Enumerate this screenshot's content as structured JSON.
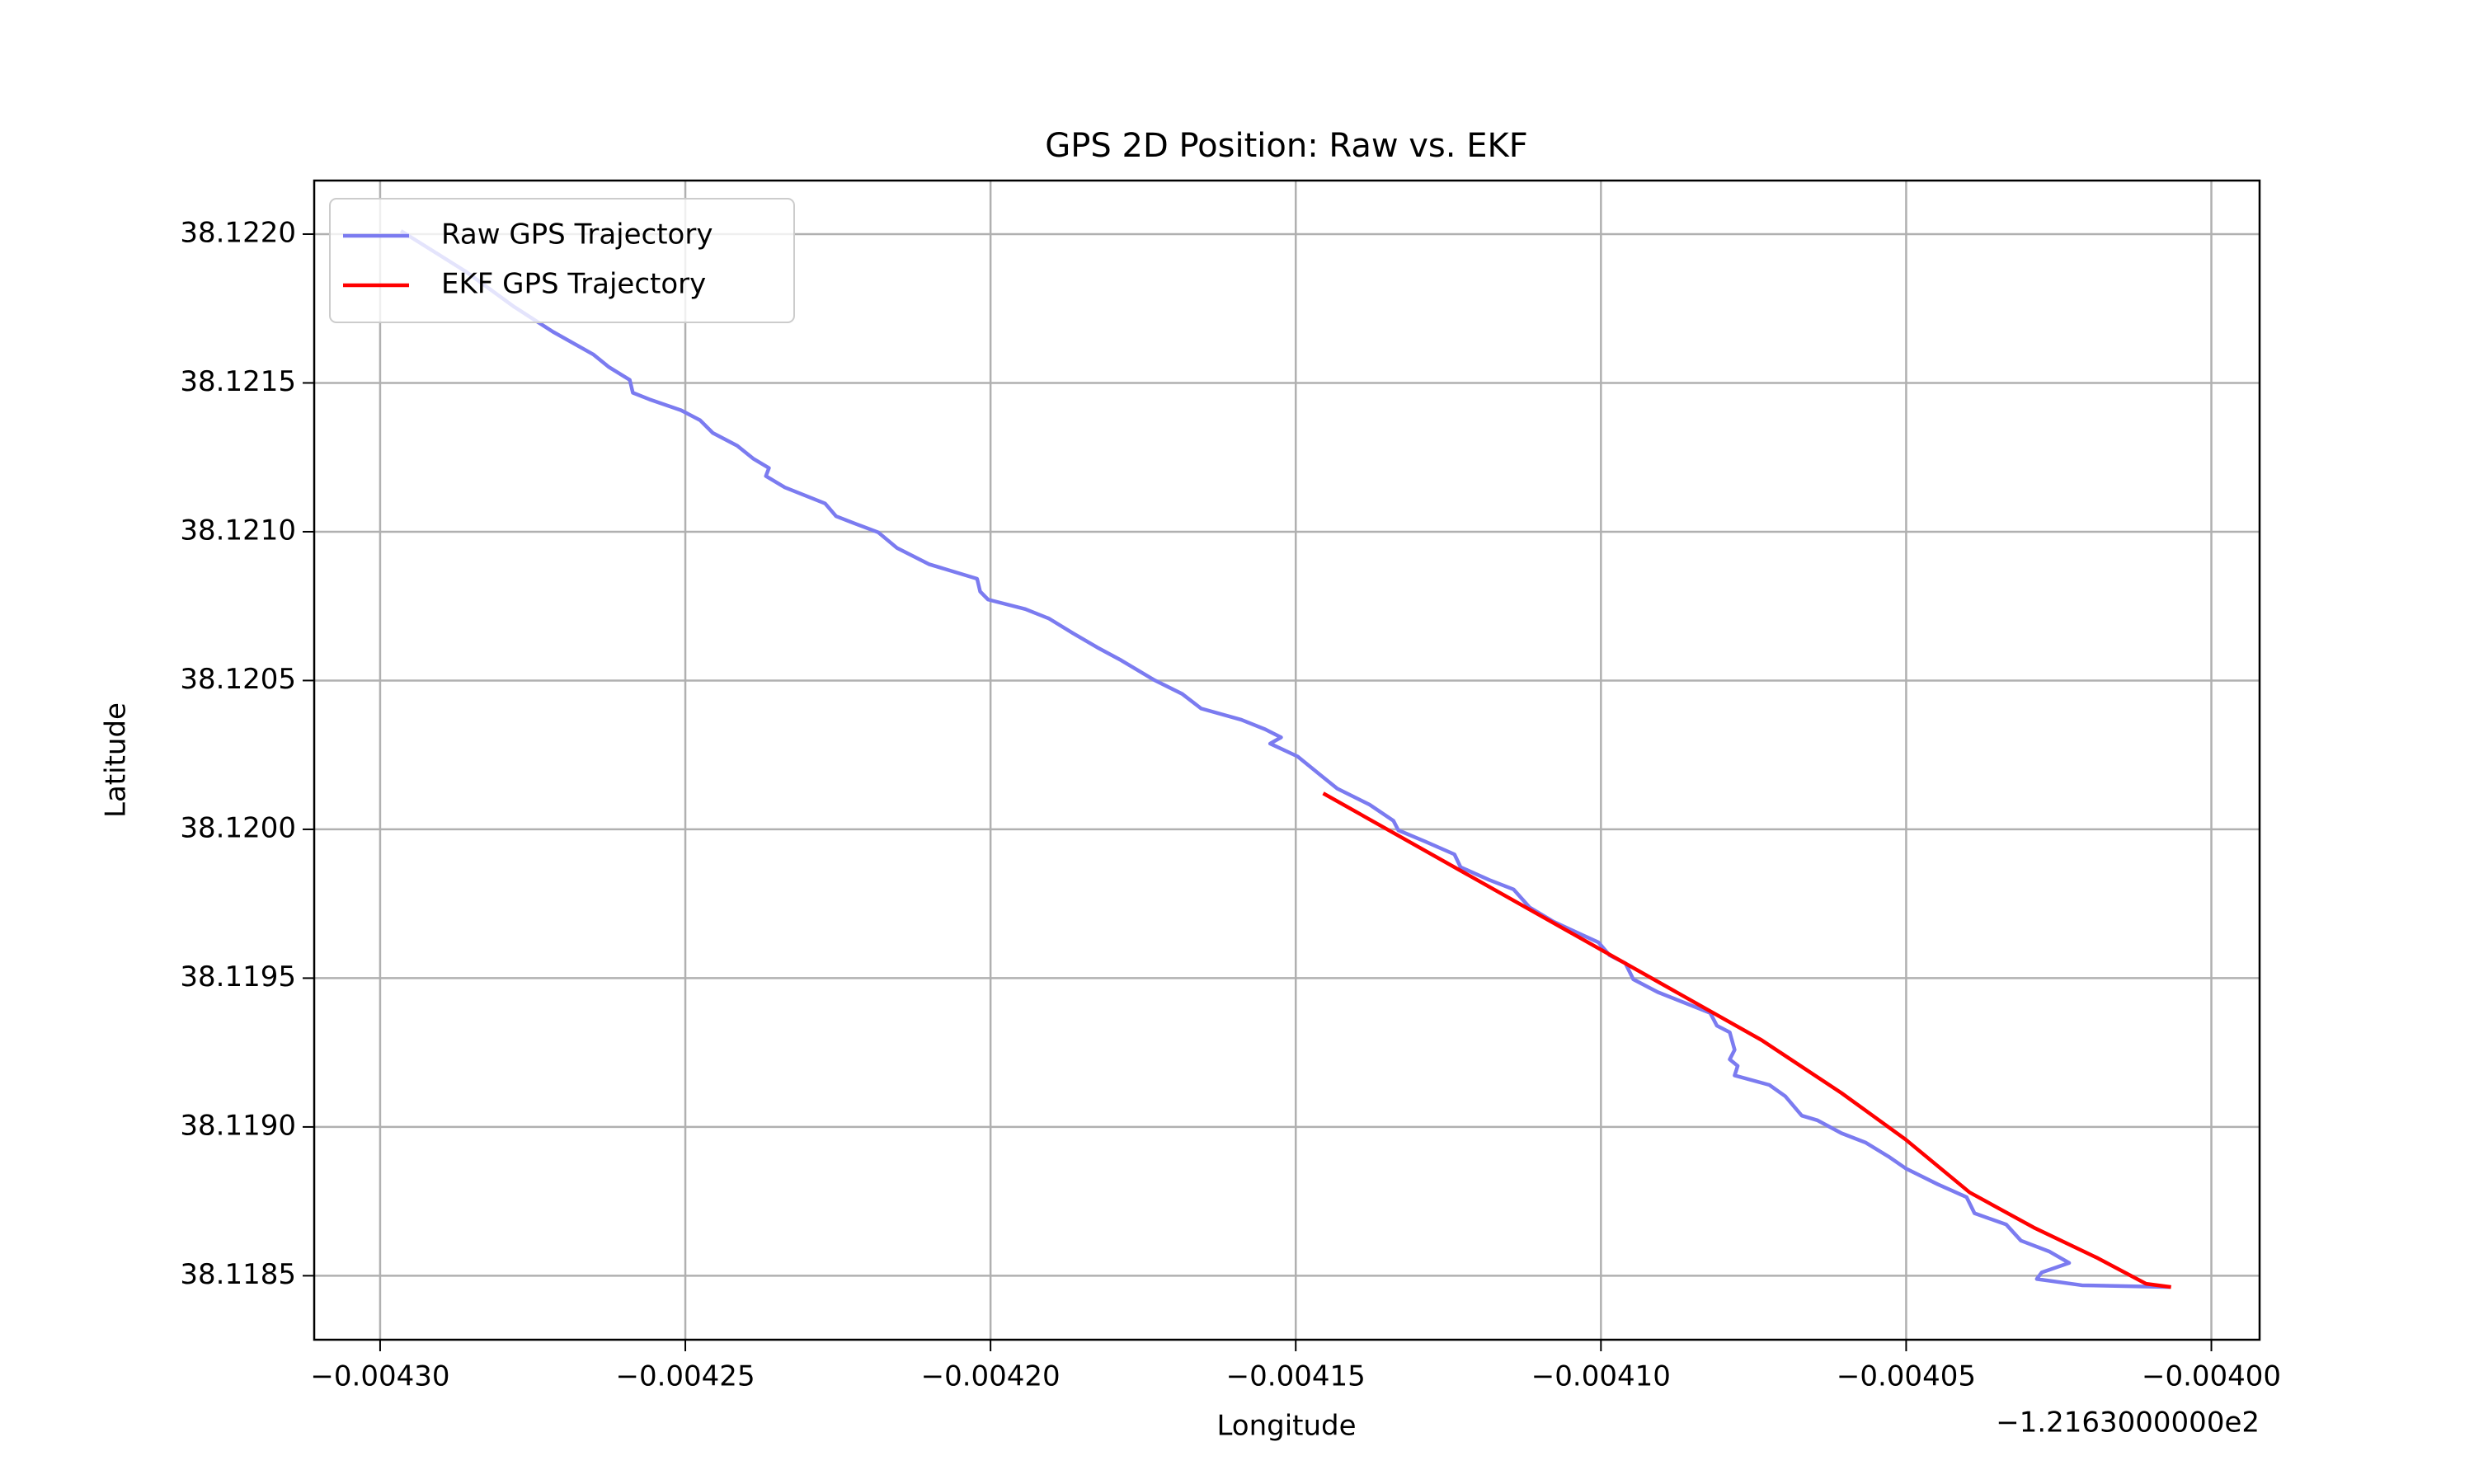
{
  "chart_data": {
    "type": "line",
    "title": "GPS 2D Position: Raw vs. EKF",
    "x_label": "Longitude",
    "y_label": "Latitude",
    "x_offset_label": "−1.2163000000e2",
    "xlim": [
      -0.0043108,
      -0.0039921
    ],
    "ylim": [
      38.118285,
      38.12218
    ],
    "xticks": [
      {
        "value": -0.0043,
        "label": "−0.00430"
      },
      {
        "value": -0.00425,
        "label": "−0.00425"
      },
      {
        "value": -0.0042,
        "label": "−0.00420"
      },
      {
        "value": -0.00415,
        "label": "−0.00415"
      },
      {
        "value": -0.0041,
        "label": "−0.00410"
      },
      {
        "value": -0.00405,
        "label": "−0.00405"
      },
      {
        "value": -0.004,
        "label": "−0.00400"
      }
    ],
    "yticks": [
      38.1185,
      {
        "value": 38.119,
        "label": "38.1190"
      },
      38.1195,
      {
        "value": 38.12,
        "label": "38.1200"
      },
      38.1205,
      {
        "value": 38.121,
        "label": "38.1210"
      },
      38.1215,
      {
        "value": 38.122,
        "label": "38.1220"
      }
    ],
    "grid": true,
    "legend": "upper left",
    "series": [
      {
        "name": "Raw GPS Trajectory",
        "color": "#7b7bf0",
        "x": [
          -0.0042966,
          -0.0042861,
          -0.0042782,
          -0.0042717,
          -0.0042651,
          -0.0042625,
          -0.0042591,
          -0.0042586,
          -0.0042559,
          -0.0042507,
          -0.0042476,
          -0.0042455,
          -0.0042415,
          -0.0042389,
          -0.0042363,
          -0.0042368,
          -0.0042337,
          -0.0042271,
          -0.0042253,
          -0.0042219,
          -0.0042184,
          -0.0042153,
          -0.0042101,
          -0.0042022,
          -0.0042017,
          -0.0042004,
          -0.0041943,
          -0.0041904,
          -0.0041865,
          -0.0041825,
          -0.0041786,
          -0.0041733,
          -0.0041686,
          -0.0041655,
          -0.0041589,
          -0.004155,
          -0.0041524,
          -0.0041542,
          -0.0041497,
          -0.0041458,
          -0.0041432,
          -0.0041379,
          -0.004134,
          -0.0041332,
          -0.0041288,
          -0.004124,
          -0.004123,
          -0.0041183,
          -0.0041143,
          -0.0041117,
          -0.0041078,
          -0.0041038,
          -0.0041004,
          -0.0040986,
          -0.004096,
          -0.0040947,
          -0.0040907,
          -0.0040821,
          -0.004081,
          -0.0040789,
          -0.0040781,
          -0.0040789,
          -0.0040776,
          -0.0040781,
          -0.0040724,
          -0.0040698,
          -0.0040671,
          -0.0040645,
          -0.0040606,
          -0.0040566,
          -0.0040527,
          -0.0040501,
          -0.0040448,
          -0.0040401,
          -0.0040388,
          -0.0040336,
          -0.0040312,
          -0.0040265,
          -0.0040233,
          -0.0040278,
          -0.0040286,
          -0.0040212,
          -0.0040068
        ],
        "y": [
          38.122011,
          38.121876,
          38.121758,
          38.121672,
          38.121596,
          38.121553,
          38.12151,
          38.121467,
          38.121445,
          38.121408,
          38.121375,
          38.121332,
          38.121289,
          38.121246,
          38.121214,
          38.121187,
          38.121149,
          38.121095,
          38.121052,
          38.121025,
          38.120998,
          38.120945,
          38.120891,
          38.120842,
          38.120799,
          38.120772,
          38.12074,
          38.120708,
          38.120659,
          38.120611,
          38.120568,
          38.120503,
          38.120455,
          38.120406,
          38.120368,
          38.120336,
          38.120309,
          38.120288,
          38.120245,
          38.12018,
          38.120137,
          38.120083,
          38.120029,
          38.119997,
          38.119959,
          38.119916,
          38.119873,
          38.11983,
          38.119798,
          38.119738,
          38.11969,
          38.119652,
          38.11962,
          38.119577,
          38.11955,
          38.119496,
          38.119453,
          38.119383,
          38.11934,
          38.119318,
          38.119259,
          38.119227,
          38.119205,
          38.119173,
          38.119141,
          38.119103,
          38.119038,
          38.119022,
          38.118979,
          38.118947,
          38.118898,
          38.118861,
          38.118807,
          38.118764,
          38.11871,
          38.118672,
          38.118618,
          38.118581,
          38.118543,
          38.118511,
          38.118489,
          38.118468,
          38.118462
        ]
      },
      {
        "name": "EKF GPS Trajectory",
        "color": "#ff0000",
        "x": [
          -0.0041455,
          -0.0040737,
          -0.0040606,
          -0.0040501,
          -0.0040396,
          -0.0040291,
          -0.0040186,
          -0.0040107,
          -0.0040066
        ],
        "y": [
          38.120121,
          38.119292,
          38.119114,
          38.118958,
          38.11878,
          38.118662,
          38.118559,
          38.118473,
          38.118462
        ]
      }
    ]
  }
}
